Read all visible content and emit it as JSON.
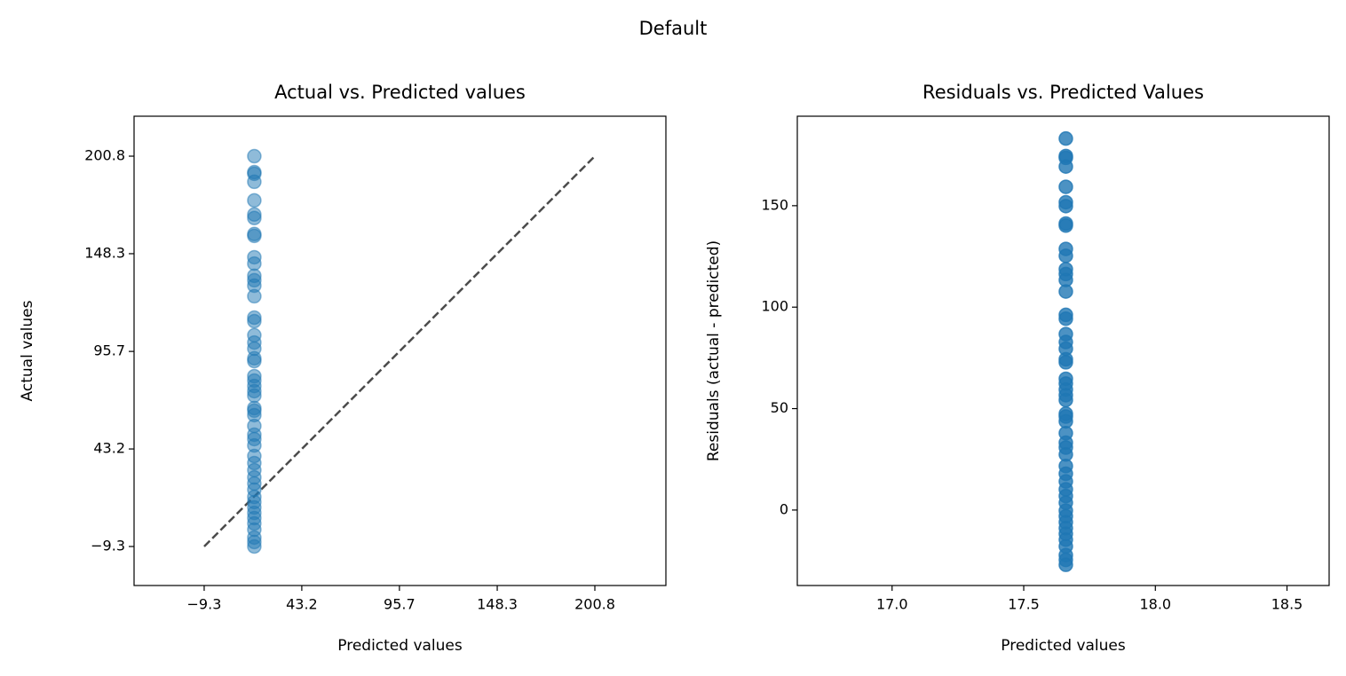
{
  "title": "Default",
  "chart_data": [
    {
      "type": "scatter",
      "title": "Actual vs. Predicted values",
      "xlabel": "Predicted values",
      "ylabel": "Actual values",
      "color": "#1f77b4",
      "alpha": 0.5,
      "xlim": [
        -47.0,
        239.0
      ],
      "ylim": [
        -30.3,
        222.3
      ],
      "xticks": [
        {
          "value": -9.3,
          "label": "−9.3"
        },
        43.2,
        95.7,
        148.3,
        200.8
      ],
      "yticks": [
        {
          "value": -9.3,
          "label": "−9.3"
        },
        43.2,
        95.7,
        148.3,
        200.8
      ],
      "x": [
        17.66,
        17.66,
        17.66,
        17.66,
        17.66,
        17.66,
        17.66,
        17.66,
        17.66,
        17.66,
        17.66,
        17.66,
        17.66,
        17.66,
        17.66,
        17.66,
        17.66,
        17.66,
        17.66,
        17.66,
        17.66,
        17.66,
        17.66,
        17.66,
        17.66,
        17.66,
        17.66,
        17.66,
        17.66,
        17.66,
        17.66,
        17.66,
        17.66,
        17.66,
        17.66,
        17.66,
        17.66,
        17.66,
        17.66,
        17.66,
        17.66,
        17.66,
        17.66,
        17.66,
        17.66,
        17.66,
        17.66,
        17.66,
        17.66,
        17.66
      ],
      "values": [
        200.8,
        192.2,
        191.3,
        187.0,
        177.0,
        169.4,
        167.5,
        158.9,
        157.9,
        146.4,
        143.0,
        136.4,
        134.0,
        131.1,
        125.4,
        113.9,
        112.0,
        104.4,
        100.5,
        97.2,
        92.0,
        90.5,
        82.4,
        80.0,
        77.1,
        74.3,
        71.9,
        65.2,
        63.8,
        61.4,
        55.6,
        50.9,
        48.5,
        45.1,
        39.4,
        35.6,
        31.8,
        27.9,
        24.6,
        21.3,
        17.4,
        14.6,
        11.7,
        8.8,
        6.0,
        3.1,
        -0.2,
        -4.5,
        -6.9,
        -9.3
      ],
      "diagonal": {
        "x": [
          -9.3,
          200.8
        ],
        "y": [
          -9.3,
          200.8
        ],
        "color": "#000000"
      }
    },
    {
      "type": "scatter",
      "title": "Residuals vs. Predicted Values",
      "xlabel": "Predicted values",
      "ylabel": "Residuals (actual - predicted)",
      "color": "#1f77b4",
      "alpha": 0.8,
      "xlim": [
        16.64,
        18.66
      ],
      "ylim": [
        -37.2,
        194.1
      ],
      "xticks": [
        {
          "value": 17,
          "label": "17.0"
        },
        17.5,
        {
          "value": 18,
          "label": "18.0"
        },
        18.5
      ],
      "yticks": [
        0,
        50,
        100,
        150
      ],
      "x": [
        17.66,
        17.66,
        17.66,
        17.66,
        17.66,
        17.66,
        17.66,
        17.66,
        17.66,
        17.66,
        17.66,
        17.66,
        17.66,
        17.66,
        17.66,
        17.66,
        17.66,
        17.66,
        17.66,
        17.66,
        17.66,
        17.66,
        17.66,
        17.66,
        17.66,
        17.66,
        17.66,
        17.66,
        17.66,
        17.66,
        17.66,
        17.66,
        17.66,
        17.66,
        17.66,
        17.66,
        17.66,
        17.66,
        17.66,
        17.66,
        17.66,
        17.66,
        17.66,
        17.66,
        17.66,
        17.66,
        17.66,
        17.66,
        17.66,
        17.66
      ],
      "values": [
        183.1,
        174.5,
        173.6,
        169.3,
        159.3,
        151.7,
        149.8,
        141.2,
        140.2,
        128.7,
        125.3,
        118.7,
        116.3,
        113.4,
        107.7,
        96.2,
        94.3,
        86.7,
        82.8,
        79.5,
        74.3,
        72.8,
        64.7,
        62.3,
        59.4,
        56.6,
        54.2,
        47.5,
        46.1,
        43.7,
        37.9,
        33.2,
        30.8,
        27.4,
        21.7,
        17.9,
        14.1,
        10.2,
        6.9,
        3.6,
        -0.3,
        -3.1,
        -6.0,
        -8.9,
        -11.7,
        -14.6,
        -17.9,
        -22.2,
        -24.6,
        -27.0
      ]
    }
  ]
}
